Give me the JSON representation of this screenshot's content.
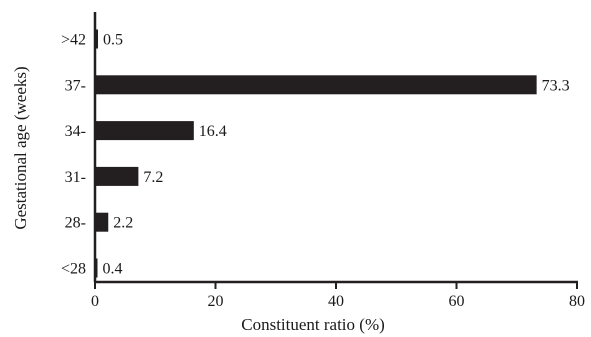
{
  "chart_data": {
    "type": "bar",
    "orientation": "horizontal",
    "categories": [
      ">42",
      "37-",
      "34-",
      "31-",
      "28-",
      "<28"
    ],
    "values": [
      0.5,
      73.3,
      16.4,
      7.2,
      2.2,
      0.4
    ],
    "data_labels": [
      "0.5",
      "73.3",
      "16.4",
      "7.2",
      "2.2",
      "0.4"
    ],
    "xlabel": "Constituent ratio (%)",
    "ylabel": "Gestational age (weeks)",
    "xlim": [
      0,
      80
    ],
    "xticks": [
      0,
      20,
      40,
      60,
      80
    ],
    "grid": false,
    "legend": "none",
    "bar_color": "#231f20"
  }
}
